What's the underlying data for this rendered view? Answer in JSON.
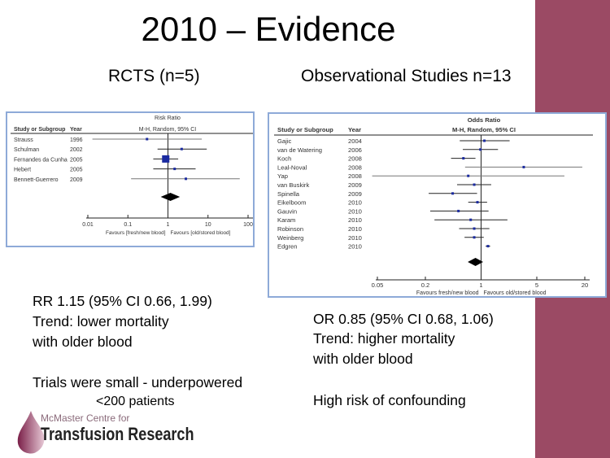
{
  "slide": {
    "title": "2010 – Evidence",
    "left_heading": "RCTS (n=5)",
    "right_heading": "Observational Studies n=13",
    "left_notes": [
      "RR 1.15 (95% CI 0.66, 1.99)",
      "Trend: lower mortality",
      "with older blood",
      "Trials were small - underpowered",
      "<200 patients"
    ],
    "right_notes": [
      "OR 0.85 (95% CI 0.68, 1.06)",
      "Trend: higher mortality",
      "with older blood",
      "High risk of confounding"
    ],
    "logo": {
      "line1": "McMaster Centre for",
      "line2": "Transfusion Research"
    },
    "accent_color": "#9b4a64"
  },
  "chart_data": [
    {
      "type": "forest",
      "title": "Risk Ratio",
      "subtitle": "M-H, Random, 95% CI",
      "col_study": "Study or Subgroup",
      "col_year": "Year",
      "xscale": "log",
      "xlim": [
        0.01,
        100
      ],
      "ticks": [
        "0.01",
        "0.1",
        "1",
        "10",
        "100"
      ],
      "tick_values": [
        0.01,
        0.1,
        1,
        10,
        100
      ],
      "favours_left": "Favours [fresh/new blood]",
      "favours_right": "Favours [old/stored blood]",
      "studies": [
        {
          "name": "Strauss",
          "year": "1996",
          "est": 0.3,
          "lo": 0.013,
          "hi": 7
        },
        {
          "name": "Schulman",
          "year": "2002",
          "est": 2.2,
          "lo": 0.55,
          "hi": 9.3
        },
        {
          "name": "Fernandes da Cunha",
          "year": "2005",
          "est": 0.88,
          "lo": 0.43,
          "hi": 1.8
        },
        {
          "name": "Hebert",
          "year": "2005",
          "est": 1.47,
          "lo": 0.43,
          "hi": 4.9
        },
        {
          "name": "Bennett-Guerrero",
          "year": "2009",
          "est": 2.8,
          "lo": 0.12,
          "hi": 62
        }
      ],
      "pooled": {
        "est": 1.15,
        "lo": 0.66,
        "hi": 1.99
      }
    },
    {
      "type": "forest",
      "title": "Odds Ratio",
      "subtitle": "M-H, Random, 95% CI",
      "col_study": "Study or Subgroup",
      "col_year": "Year",
      "xscale": "log",
      "xlim": [
        0.05,
        20
      ],
      "ticks": [
        "0.05",
        "0.2",
        "1",
        "5",
        "20"
      ],
      "tick_values": [
        0.05,
        0.2,
        1,
        5,
        20
      ],
      "favours_left": "Favours fresh/new blood",
      "favours_right": "Favours old/stored blood",
      "studies": [
        {
          "name": "Gajic",
          "year": "2004",
          "est": 1.1,
          "lo": 0.54,
          "hi": 2.28
        },
        {
          "name": "van de Watering",
          "year": "2006",
          "est": 0.98,
          "lo": 0.59,
          "hi": 1.63
        },
        {
          "name": "Koch",
          "year": "2008",
          "est": 0.6,
          "lo": 0.42,
          "hi": 0.85
        },
        {
          "name": "Leal-Noval",
          "year": "2008",
          "est": 3.43,
          "lo": 0.63,
          "hi": 18.6
        },
        {
          "name": "Yap",
          "year": "2008",
          "est": 0.69,
          "lo": 0.043,
          "hi": 11.1
        },
        {
          "name": "van Buskirk",
          "year": "2009",
          "est": 0.82,
          "lo": 0.5,
          "hi": 1.34
        },
        {
          "name": "Spinella",
          "year": "2009",
          "est": 0.44,
          "lo": 0.22,
          "hi": 0.89
        },
        {
          "name": "Eikelboom",
          "year": "2010",
          "est": 0.9,
          "lo": 0.69,
          "hi": 1.19
        },
        {
          "name": "Gauvin",
          "year": "2010",
          "est": 0.52,
          "lo": 0.23,
          "hi": 1.24
        },
        {
          "name": "Karam",
          "year": "2010",
          "est": 0.74,
          "lo": 0.26,
          "hi": 2.14
        },
        {
          "name": "Robinson",
          "year": "2010",
          "est": 0.82,
          "lo": 0.53,
          "hi": 1.27
        },
        {
          "name": "Weinberg",
          "year": "2010",
          "est": 0.82,
          "lo": 0.62,
          "hi": 1.08
        },
        {
          "name": "Edgren",
          "year": "2010",
          "est": 1.22,
          "lo": 1.14,
          "hi": 1.3
        }
      ],
      "pooled": {
        "est": 0.85,
        "lo": 0.68,
        "hi": 1.06
      }
    }
  ]
}
